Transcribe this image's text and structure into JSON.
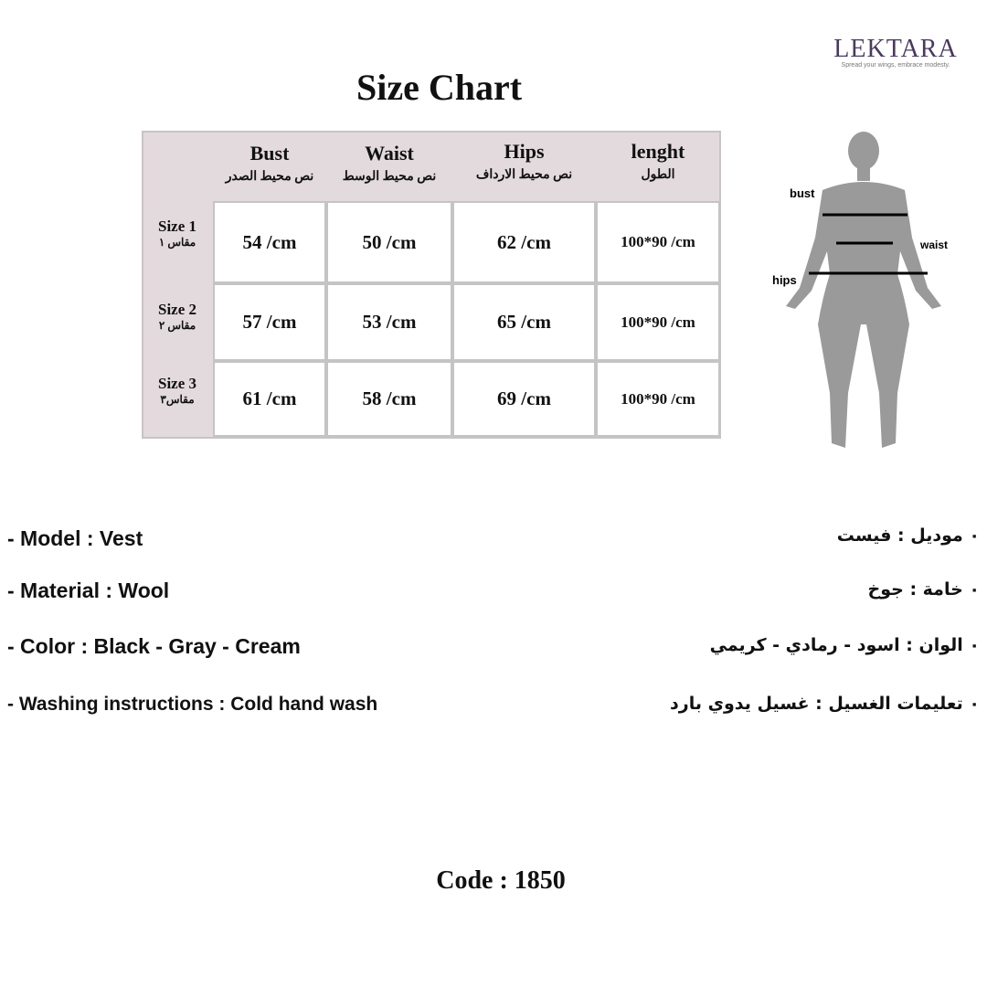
{
  "brand": {
    "name": "LEKTARA",
    "tagline": "Spread your wings, embrace modesty."
  },
  "title": "Size Chart",
  "table": {
    "columns": [
      {
        "en": "Bust",
        "ar": "نص محيط الصدر"
      },
      {
        "en": "Waist",
        "ar": "نص محيط الوسط"
      },
      {
        "en": "Hips",
        "ar": "نص محيط الارداف"
      },
      {
        "en": "lenght",
        "ar": "الطول"
      }
    ],
    "rows": [
      {
        "en": "Size 1",
        "ar": "مقاس ١",
        "values": [
          "54 /cm",
          "50 /cm",
          "62 /cm",
          "100*90 /cm"
        ]
      },
      {
        "en": "Size 2",
        "ar": "مقاس ٢",
        "values": [
          "57 /cm",
          "53 /cm",
          "65 /cm",
          "100*90 /cm"
        ]
      },
      {
        "en": "Size 3",
        "ar": "مقاس٣",
        "values": [
          "61 /cm",
          "58 /cm",
          "69 /cm",
          "100*90 /cm"
        ]
      }
    ]
  },
  "figure": {
    "labels": {
      "bust": "bust",
      "waist": "waist",
      "hips": "hips"
    },
    "color": "#9a9a9a"
  },
  "details_en": [
    "- Model : Vest",
    "- Material : Wool",
    "- Color : Black - Gray - Cream",
    "- Washing instructions : Cold hand wash"
  ],
  "details_ar": [
    "٠ موديل : فيست",
    "٠ خامة : جوخ",
    "٠ الوان : اسود - رمادي - كريمي",
    "٠ تعليمات الغسيل : غسيل يدوي بارد"
  ],
  "code": "Code : 1850"
}
